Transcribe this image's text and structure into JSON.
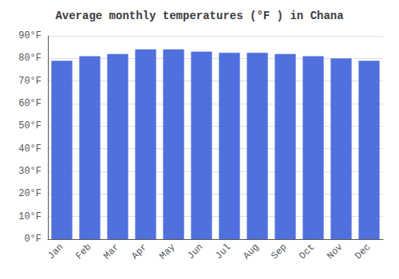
{
  "chart_data": {
    "type": "bar",
    "title": "Average monthly temperatures (°F ) in Chana",
    "categories": [
      "Jan",
      "Feb",
      "Mar",
      "Apr",
      "May",
      "Jun",
      "Jul",
      "Aug",
      "Sep",
      "Oct",
      "Nov",
      "Dec"
    ],
    "values": [
      79,
      81,
      82,
      84,
      84,
      83,
      82.5,
      82.5,
      82,
      81,
      80,
      79
    ],
    "ylim": [
      0,
      90
    ],
    "yticks": [
      {
        "value": 0,
        "label": "0°F"
      },
      {
        "value": 10,
        "label": "10°F"
      },
      {
        "value": 20,
        "label": "20°F"
      },
      {
        "value": 30,
        "label": "30°F"
      },
      {
        "value": 40,
        "label": "40°F"
      },
      {
        "value": 50,
        "label": "50°F"
      },
      {
        "value": 60,
        "label": "60°F"
      },
      {
        "value": 70,
        "label": "70°F"
      },
      {
        "value": 80,
        "label": "80°F"
      },
      {
        "value": 90,
        "label": "90°F"
      }
    ],
    "grid": true
  }
}
